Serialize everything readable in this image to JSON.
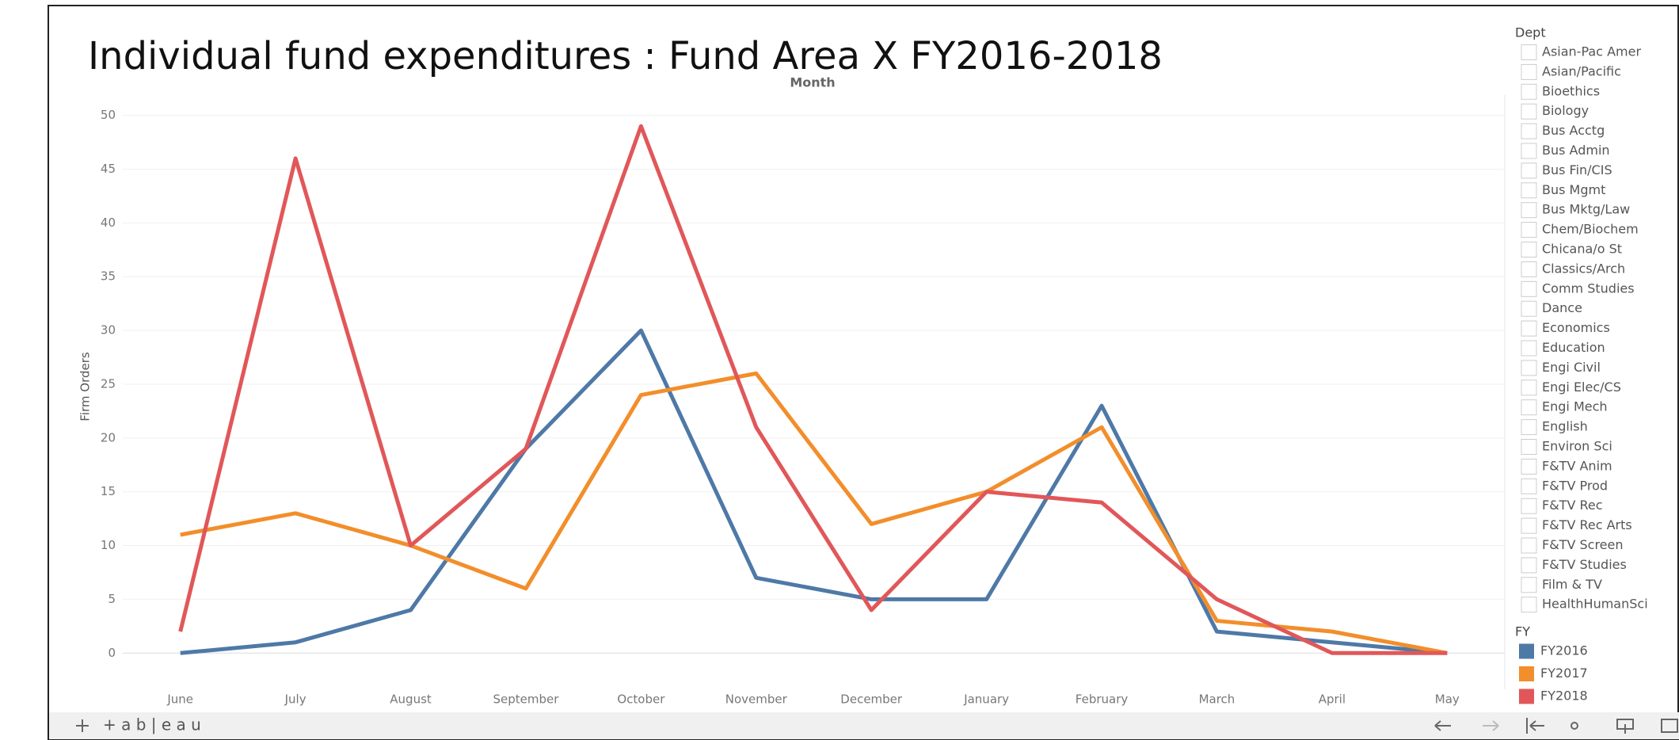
{
  "chart_data": {
    "type": "line",
    "title": "Individual fund expenditures : Fund Area X FY2016-2018",
    "x_label": "Month",
    "y_label": "Firm Orders",
    "categories": [
      "June",
      "July",
      "August",
      "September",
      "October",
      "November",
      "December",
      "January",
      "February",
      "March",
      "April",
      "May"
    ],
    "series": [
      {
        "name": "FY2016",
        "color": "#4e79a7",
        "values": [
          0,
          1,
          4,
          19,
          30,
          7,
          5,
          5,
          23,
          2,
          1,
          0
        ]
      },
      {
        "name": "FY2017",
        "color": "#f28e2b",
        "values": [
          11,
          13,
          10,
          6,
          24,
          26,
          12,
          15,
          21,
          3,
          2,
          0
        ]
      },
      {
        "name": "FY2018",
        "color": "#e15759",
        "values": [
          2,
          46,
          10,
          19,
          49,
          21,
          4,
          15,
          14,
          5,
          0,
          0
        ]
      }
    ],
    "ylim": [
      -3,
      51.3
    ],
    "yticks": [
      0,
      5,
      10,
      15,
      20,
      25,
      30,
      35,
      40,
      45,
      50
    ],
    "grid": true,
    "legend_title": "FY"
  },
  "dept_filter": {
    "title": "Dept",
    "items": [
      "Asian-Pac Amer",
      "Asian/Pacific",
      "Bioethics",
      "Biology",
      "Bus Acctg",
      "Bus Admin",
      "Bus Fin/CIS",
      "Bus Mgmt",
      "Bus Mktg/Law",
      "Chem/Biochem",
      "Chicana/o St",
      "Classics/Arch",
      "Comm Studies",
      "Dance",
      "Economics",
      "Education",
      "Engi Civil",
      "Engi Elec/CS",
      "Engi Mech",
      "English",
      "Environ Sci",
      "F&TV Anim",
      "F&TV Prod",
      "F&TV Rec",
      "F&TV Rec Arts",
      "F&TV Screen",
      "F&TV Studies",
      "Film & TV",
      "HealthHumanSci"
    ]
  },
  "footer": {
    "brand": "+ a b | e a u"
  }
}
